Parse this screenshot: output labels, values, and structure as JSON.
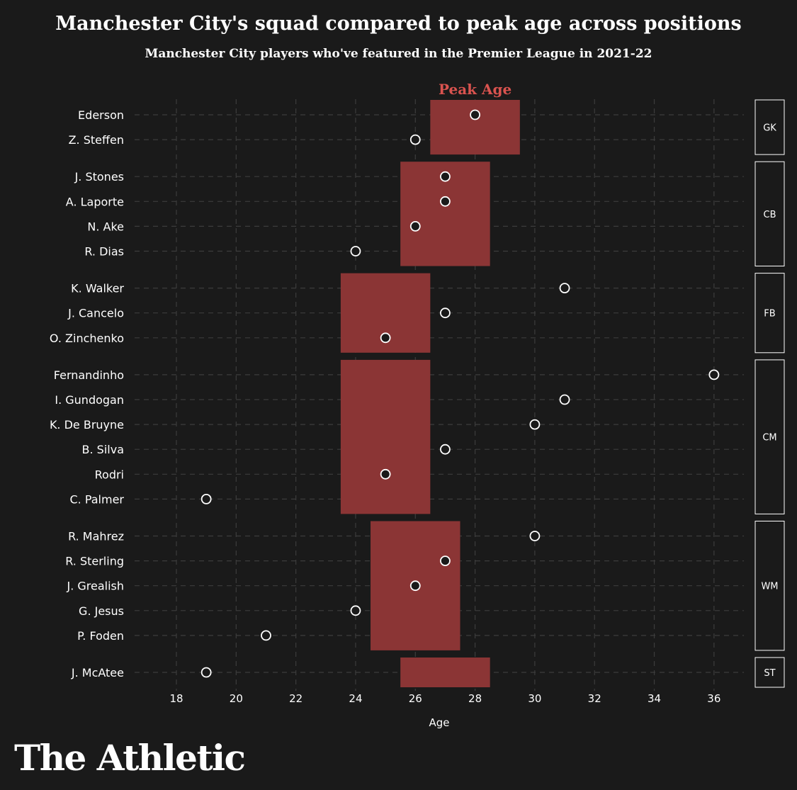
{
  "header": {
    "title": "Manchester City's squad compared to peak age across positions",
    "subtitle": "Manchester City players who've featured in the Premier League in 2021-22"
  },
  "brand": {
    "logo": "The Athletic"
  },
  "colors": {
    "background": "#1a1a1a",
    "peak_band": "#8b3535",
    "peak_label": "#d9534f",
    "grid": "#3c3c3c",
    "text": "#ffffff"
  },
  "chart_data": {
    "type": "scatter",
    "title": "Manchester City's squad compared to peak age across positions",
    "xlabel": "Age",
    "ylabel": "",
    "xlim": [
      16.6,
      37.0
    ],
    "xticks": [
      18,
      20,
      22,
      24,
      26,
      28,
      30,
      32,
      34,
      36
    ],
    "grid": true,
    "band_label": "Peak Age",
    "groups": [
      {
        "position": "GK",
        "peak_age_range": [
          26.5,
          29.5
        ],
        "players": [
          {
            "name": "Ederson",
            "age": 28
          },
          {
            "name": "Z. Steffen",
            "age": 26
          }
        ]
      },
      {
        "position": "CB",
        "peak_age_range": [
          25.5,
          28.5
        ],
        "players": [
          {
            "name": "J. Stones",
            "age": 27
          },
          {
            "name": "A. Laporte",
            "age": 27
          },
          {
            "name": "N. Ake",
            "age": 26
          },
          {
            "name": "R. Dias",
            "age": 24
          }
        ]
      },
      {
        "position": "FB",
        "peak_age_range": [
          23.5,
          26.5
        ],
        "players": [
          {
            "name": "K. Walker",
            "age": 31
          },
          {
            "name": "J. Cancelo",
            "age": 27
          },
          {
            "name": "O. Zinchenko",
            "age": 25
          }
        ]
      },
      {
        "position": "CM",
        "peak_age_range": [
          23.5,
          26.5
        ],
        "players": [
          {
            "name": "Fernandinho",
            "age": 36
          },
          {
            "name": "I. Gundogan",
            "age": 31
          },
          {
            "name": "K. De Bruyne",
            "age": 30
          },
          {
            "name": "B. Silva",
            "age": 27
          },
          {
            "name": "Rodri",
            "age": 25
          },
          {
            "name": "C. Palmer",
            "age": 19
          }
        ]
      },
      {
        "position": "WM",
        "peak_age_range": [
          24.5,
          27.5
        ],
        "players": [
          {
            "name": "R. Mahrez",
            "age": 30
          },
          {
            "name": "R. Sterling",
            "age": 27
          },
          {
            "name": "J. Grealish",
            "age": 26
          },
          {
            "name": "G. Jesus",
            "age": 24
          },
          {
            "name": "P. Foden",
            "age": 21
          }
        ]
      },
      {
        "position": "ST",
        "peak_age_range": [
          25.5,
          28.5
        ],
        "players": [
          {
            "name": "J. McAtee",
            "age": 19
          }
        ]
      }
    ]
  }
}
